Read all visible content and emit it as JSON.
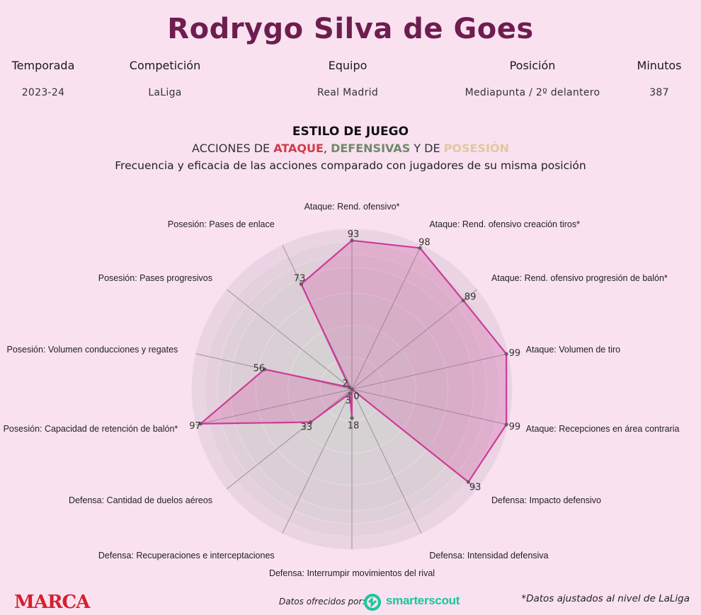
{
  "player_name": "Rodrygo Silva de Goes",
  "info": {
    "headers": [
      "Temporada",
      "Competición",
      "Equipo",
      "Posición",
      "Minutos"
    ],
    "values": [
      "2023-24",
      "LaLiga",
      "Real Madrid",
      "Mediapunta / 2º delantero",
      "387"
    ]
  },
  "style": {
    "heading": "ESTILO DE JUEGO",
    "line_pre": "ACCIONES DE ",
    "ataque": "ATAQUE",
    "comma": ", ",
    "defensivas": "DEFENSIVAS",
    "y_de": " Y DE ",
    "posesion": "POSESIÓN",
    "description": "Frecuencia y eficacia de las acciones comparado con jugadores de su misma posición"
  },
  "colors": {
    "background": "#f9e1f0",
    "title": "#6e1d4f",
    "ataque": "#d23a4a",
    "defensa": "#6f8a68",
    "posesion": "#e0c9a0",
    "series_line": "#d0399a",
    "series_fill": "#d0399a",
    "marca": "#d3212d",
    "smarterscout": "#18c79a"
  },
  "chart_data": {
    "type": "radar",
    "rmax": 100,
    "categories": [
      "Ataque: Rend. ofensivo*",
      "Ataque: Rend. ofensivo creación tiros*",
      "Ataque: Rend. ofensivo progresión de balón*",
      "Ataque: Volumen de tiro",
      "Ataque: Recepciones en área contraria",
      "Defensa: Impacto defensivo",
      "Defensa: Intensidad defensiva",
      "Defensa: Interrumpir movimientos del rival",
      "Defensa: Recuperaciones e interceptaciones",
      "Defensa: Cantidad de duelos aéreos",
      "Posesión: Capacidad de retención de balón*",
      "Posesión: Volumen conducciones y regates",
      "Posesión: Pases progresivos",
      "Posesión: Pases de enlace"
    ],
    "values": [
      93,
      98,
      89,
      99,
      99,
      93,
      0,
      18,
      3,
      33,
      97,
      56,
      2,
      73
    ],
    "value_labels": [
      "93",
      "98",
      "89",
      "99",
      "99",
      "93",
      "0",
      "18",
      "3",
      "33",
      "97",
      "56",
      "2",
      "73"
    ]
  },
  "footer": {
    "brand": "MARCA",
    "datos": "Datos ofrecidos por:",
    "provider": "smarterscout",
    "note": "*Datos ajustados al nivel de LaLiga"
  }
}
